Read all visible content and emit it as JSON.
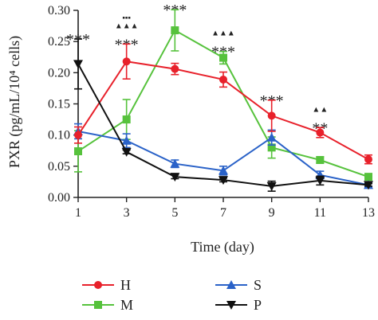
{
  "chart_data": {
    "type": "line",
    "xlabel": "Time (day)",
    "ylabel": "PXR (pg/mL/10⁴ cells)",
    "xlim": [
      1,
      13
    ],
    "ylim": [
      0,
      0.3
    ],
    "x_ticks": [
      "1",
      "3",
      "5",
      "7",
      "9",
      "11",
      "13"
    ],
    "y_ticks": [
      "0.00",
      "0.05",
      "0.10",
      "0.15",
      "0.20",
      "0.25",
      "0.30"
    ],
    "x": [
      1,
      3,
      5,
      7,
      9,
      11,
      13
    ],
    "legend_placement": "bottom",
    "series": [
      {
        "name": "H",
        "color": "#e8212b",
        "marker": "circle",
        "values": [
          0.1,
          0.218,
          0.206,
          0.189,
          0.131,
          0.104,
          0.061
        ],
        "errors": [
          0.013,
          0.028,
          0.009,
          0.012,
          0.025,
          0.008,
          0.007
        ]
      },
      {
        "name": "M",
        "color": "#56c23c",
        "marker": "square",
        "values": [
          0.074,
          0.125,
          0.268,
          0.224,
          0.08,
          0.06,
          0.033
        ],
        "errors": [
          0.033,
          0.032,
          0.033,
          0.01,
          0.017,
          0.005,
          0.005
        ]
      },
      {
        "name": "S",
        "color": "#2a62c8",
        "marker": "triangle-up",
        "values": [
          0.106,
          0.091,
          0.054,
          0.043,
          0.096,
          0.036,
          0.02
        ],
        "errors": [
          0.012,
          0.011,
          0.006,
          0.007,
          0.012,
          0.006,
          0.003
        ]
      },
      {
        "name": "P",
        "color": "#111111",
        "marker": "triangle-down",
        "values": [
          0.214,
          0.073,
          0.033,
          0.028,
          0.018,
          0.027,
          0.02
        ],
        "errors": [
          0.04,
          0.003,
          0.003,
          0.003,
          0.008,
          0.007,
          0.002
        ]
      }
    ],
    "annotations": [
      {
        "x": 1,
        "lines": [
          {
            "text": "***",
            "type": "star"
          }
        ]
      },
      {
        "x": 3,
        "lines": [
          {
            "text": "▪▪▪",
            "type": "square"
          },
          {
            "text": "▲▲▲",
            "type": "triangle"
          },
          {
            "text": "***",
            "type": "star"
          }
        ]
      },
      {
        "x": 5,
        "lines": [
          {
            "text": "▪▪",
            "type": "square"
          },
          {
            "text": "▲▲▲",
            "type": "triangle"
          },
          {
            "text": "***",
            "type": "star"
          }
        ]
      },
      {
        "x": 7,
        "lines": [
          {
            "text": "▲▲▲",
            "type": "triangle"
          },
          {
            "text": "***",
            "type": "star"
          }
        ]
      },
      {
        "x": 9,
        "lines": [
          {
            "text": "***",
            "type": "star"
          }
        ]
      },
      {
        "x": 11,
        "lines": [
          {
            "text": "▲▲",
            "type": "triangle"
          },
          {
            "text": "**",
            "type": "star"
          }
        ]
      }
    ]
  }
}
